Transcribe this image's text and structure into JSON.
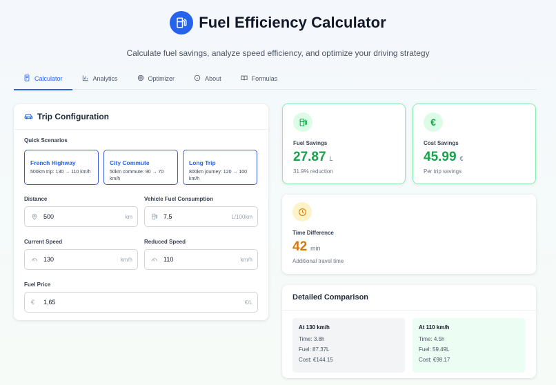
{
  "app": {
    "title": "Fuel Efficiency Calculator",
    "subtitle": "Calculate fuel savings, analyze speed efficiency, and optimize your driving strategy",
    "accent": "#2563eb"
  },
  "tabs": [
    {
      "label": "Calculator",
      "icon": "calculator-icon",
      "active": true
    },
    {
      "label": "Analytics",
      "icon": "bar-chart-icon"
    },
    {
      "label": "Optimizer",
      "icon": "target-icon"
    },
    {
      "label": "About",
      "icon": "info-icon"
    },
    {
      "label": "Formulas",
      "icon": "book-icon"
    }
  ],
  "trip": {
    "heading": "Trip Configuration",
    "quick_label": "Quick Scenarios",
    "scenarios": [
      {
        "title": "French Highway",
        "desc": "500km trip: 130 → 110 km/h"
      },
      {
        "title": "City Commute",
        "desc": "50km commute: 90 → 70 km/h"
      },
      {
        "title": "Long Trip",
        "desc": "800km journey: 120 → 100 km/h"
      }
    ],
    "fields": {
      "distance": {
        "label": "Distance",
        "value": "500",
        "unit": "km"
      },
      "consumption": {
        "label": "Vehicle Fuel Consumption",
        "value": "7,5",
        "unit": "L/100km"
      },
      "current_speed": {
        "label": "Current Speed",
        "value": "130",
        "unit": "km/h"
      },
      "reduced_speed": {
        "label": "Reduced Speed",
        "value": "110",
        "unit": "km/h"
      },
      "fuel_price": {
        "label": "Fuel Price",
        "value": "1,65",
        "unit": "€/L"
      }
    }
  },
  "results": {
    "fuel": {
      "label": "Fuel Savings",
      "value": "27.87",
      "unit": "L",
      "note": "31.9% reduction",
      "color": "#16a34a"
    },
    "cost": {
      "label": "Cost Savings",
      "value": "45.99",
      "unit": "€",
      "note": "Per trip savings",
      "color": "#16a34a"
    },
    "time": {
      "label": "Time Difference",
      "value": "42",
      "unit": "min",
      "note": "Additional travel time",
      "color": "#d97706"
    }
  },
  "comparison": {
    "heading": "Detailed Comparison",
    "left": {
      "title": "At 130 km/h",
      "time": "Time: 3.8h",
      "fuel": "Fuel: 87.37L",
      "cost": "Cost: €144.15"
    },
    "right": {
      "title": "At 110 km/h",
      "time": "Time: 4.5h",
      "fuel": "Fuel: 59.49L",
      "cost": "Cost: €98.17"
    }
  }
}
